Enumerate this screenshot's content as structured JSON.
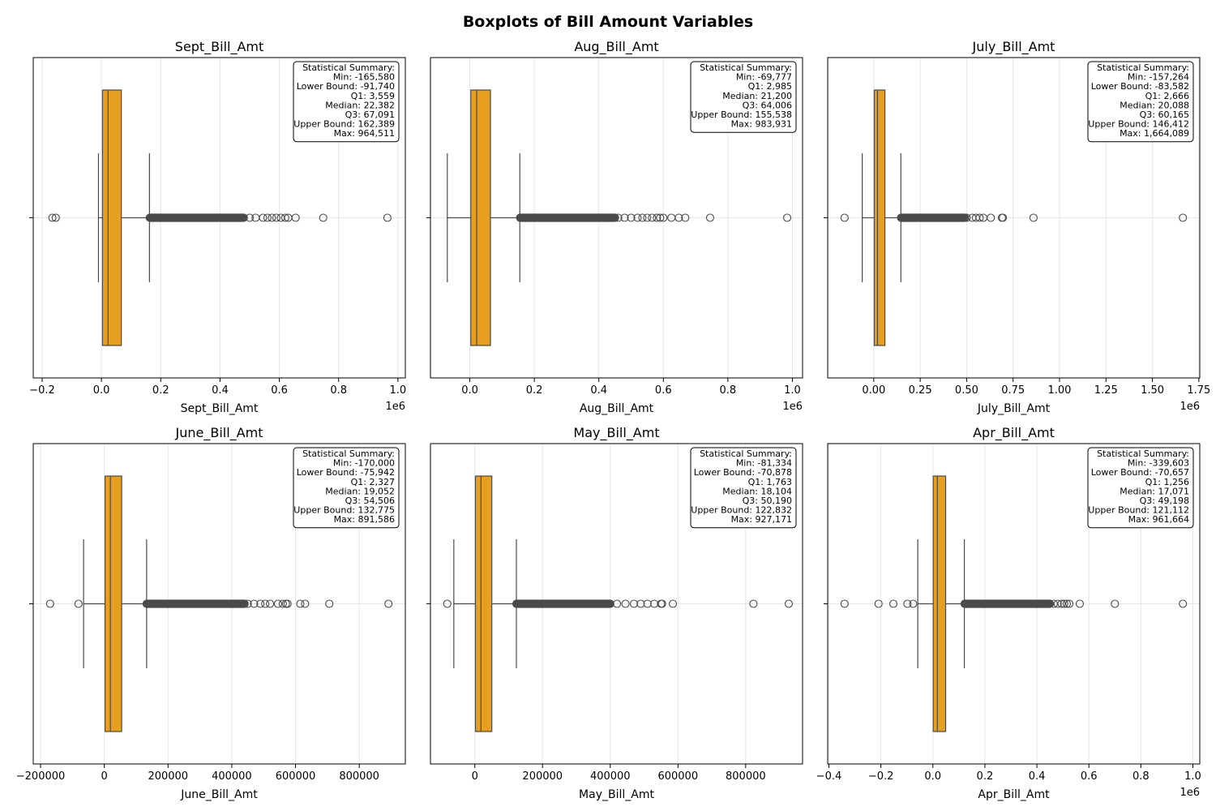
{
  "title": "Boxplots of Bill Amount Variables",
  "colors": {
    "box_fill": "#E69F1F",
    "line": "#4a4a4a",
    "grid": "#e6e6e6",
    "frame": "#000000"
  },
  "chart_data": [
    {
      "type": "boxplot",
      "orientation": "horizontal",
      "title": "Sept_Bill_Amt",
      "xlabel": "Sept_Bill_Amt",
      "xlim": [
        -0.23,
        1.025
      ],
      "scale_factor": 1000000,
      "offset_text": "1e6",
      "xticks": [
        -0.2,
        0,
        0.2,
        0.4,
        0.6,
        0.8,
        1.0
      ],
      "xtick_labels": [
        "−0.2",
        "0.0",
        "0.2",
        "0.4",
        "0.6",
        "0.8",
        "1.0"
      ],
      "box": {
        "q1": 0.003559,
        "median": 0.022382,
        "q3": 0.067091,
        "whisker_low": -0.01,
        "whisker_high": 0.162
      },
      "outliers_low": [
        -0.16558,
        -0.154
      ],
      "outlier_band": [
        0.163,
        0.48
      ],
      "outliers_high": [
        0.5,
        0.52,
        0.545,
        0.56,
        0.575,
        0.59,
        0.605,
        0.62,
        0.63,
        0.655,
        0.748,
        0.964511
      ],
      "summary_title": "Statistical Summary:",
      "summary_lines": [
        "Min: -165,580",
        "Lower Bound: -91,740",
        "Q1: 3,559",
        "Median: 22,382",
        "Q3: 67,091",
        "Upper Bound: 162,389",
        "Max: 964,511"
      ]
    },
    {
      "type": "boxplot",
      "orientation": "horizontal",
      "title": "Aug_Bill_Amt",
      "xlabel": "Aug_Bill_Amt",
      "xlim": [
        -0.122,
        1.0316
      ],
      "scale_factor": 1000000,
      "offset_text": "1e6",
      "xticks": [
        0,
        0.2,
        0.4,
        0.6,
        0.8,
        1.0
      ],
      "xtick_labels": [
        "0.0",
        "0.2",
        "0.4",
        "0.6",
        "0.8",
        "1.0"
      ],
      "box": {
        "q1": 0.002985,
        "median": 0.0212,
        "q3": 0.064006,
        "whisker_low": -0.069777,
        "whisker_high": 0.155
      },
      "outliers_low": [],
      "outlier_band": [
        0.156,
        0.45
      ],
      "outliers_high": [
        0.46,
        0.48,
        0.5,
        0.52,
        0.535,
        0.55,
        0.565,
        0.58,
        0.59,
        0.6,
        0.625,
        0.648,
        0.668,
        0.745,
        0.983931
      ],
      "summary_title": "Statistical Summary:",
      "summary_lines": [
        "Min: -69,777",
        "Q1: 2,985",
        "Median: 21,200",
        "Q3: 64,006",
        "Upper Bound: 155,538",
        "Max: 983,931"
      ]
    },
    {
      "type": "boxplot",
      "orientation": "horizontal",
      "title": "July_Bill_Amt",
      "xlabel": "July_Bill_Amt",
      "xlim": [
        -0.248,
        1.755
      ],
      "scale_factor": 1000000,
      "offset_text": "1e6",
      "xticks": [
        0,
        0.25,
        0.5,
        0.75,
        1.0,
        1.25,
        1.5,
        1.75
      ],
      "xtick_labels": [
        "0.00",
        "0.25",
        "0.50",
        "0.75",
        "1.00",
        "1.25",
        "1.50",
        "1.75"
      ],
      "box": {
        "q1": 0.002666,
        "median": 0.020088,
        "q3": 0.060165,
        "whisker_low": -0.062,
        "whisker_high": 0.146
      },
      "outliers_low": [
        -0.157264
      ],
      "outlier_band": [
        0.147,
        0.49
      ],
      "outliers_high": [
        0.5,
        0.53,
        0.55,
        0.57,
        0.59,
        0.63,
        0.69,
        0.695,
        0.86,
        1.664089
      ],
      "summary_title": "Statistical Summary:",
      "summary_lines": [
        "Min: -157,264",
        "Lower Bound: -83,582",
        "Q1: 2,666",
        "Median: 20,088",
        "Q3: 60,165",
        "Upper Bound: 146,412",
        "Max: 1,664,089"
      ]
    },
    {
      "type": "boxplot",
      "orientation": "horizontal",
      "title": "June_Bill_Amt",
      "xlabel": "June_Bill_Amt",
      "xlim": [
        -223000,
        944600
      ],
      "scale_factor": 1,
      "offset_text": "",
      "xticks": [
        -200000,
        0,
        200000,
        400000,
        600000,
        800000
      ],
      "xtick_labels": [
        "−200000",
        "0",
        "200000",
        "400000",
        "600000",
        "800000"
      ],
      "box": {
        "q1": 2327,
        "median": 19052,
        "q3": 54506,
        "whisker_low": -65000,
        "whisker_high": 132775
      },
      "outliers_low": [
        -170000,
        -81000
      ],
      "outlier_band": [
        133000,
        440000
      ],
      "outliers_high": [
        450000,
        470000,
        490000,
        505000,
        520000,
        545000,
        560000,
        570000,
        575000,
        615000,
        630000,
        706000,
        891586
      ],
      "summary_title": "Statistical Summary:",
      "summary_lines": [
        "Min: -170,000",
        "Lower Bound: -75,942",
        "Q1: 2,327",
        "Median: 19,052",
        "Q3: 54,506",
        "Upper Bound: 132,775",
        "Max: 891,586"
      ]
    },
    {
      "type": "boxplot",
      "orientation": "horizontal",
      "title": "May_Bill_Amt",
      "xlabel": "May_Bill_Amt",
      "xlim": [
        -131000,
        968000
      ],
      "scale_factor": 1,
      "offset_text": "",
      "xticks": [
        0,
        200000,
        400000,
        600000,
        800000
      ],
      "xtick_labels": [
        "0",
        "200000",
        "400000",
        "600000",
        "800000"
      ],
      "box": {
        "q1": 1763,
        "median": 18104,
        "q3": 50190,
        "whisker_low": -62000,
        "whisker_high": 122832
      },
      "outliers_low": [
        -81334
      ],
      "outlier_band": [
        123000,
        400000
      ],
      "outliers_high": [
        420000,
        445000,
        470000,
        490000,
        510000,
        530000,
        550000,
        553000,
        585000,
        823000,
        927171
      ],
      "summary_title": "Statistical Summary:",
      "summary_lines": [
        "Min: -81,334",
        "Lower Bound: -70,878",
        "Q1: 1,763",
        "Median: 18,104",
        "Q3: 50,190",
        "Upper Bound: 122,832",
        "Max: 927,171"
      ]
    },
    {
      "type": "boxplot",
      "orientation": "horizontal",
      "title": "Apr_Bill_Amt",
      "xlabel": "Apr_Bill_Amt",
      "xlim": [
        -0.4046,
        1.0266
      ],
      "scale_factor": 1000000,
      "offset_text": "1e6",
      "xticks": [
        -0.4,
        -0.2,
        0,
        0.2,
        0.4,
        0.6,
        0.8,
        1.0
      ],
      "xtick_labels": [
        "−0.4",
        "−0.2",
        "0.0",
        "0.2",
        "0.4",
        "0.6",
        "0.8",
        "1.0"
      ],
      "box": {
        "q1": 0.001256,
        "median": 0.017071,
        "q3": 0.049198,
        "whisker_low": -0.058,
        "whisker_high": 0.121
      },
      "outliers_low": [
        -0.339603,
        -0.209,
        -0.152,
        -0.098,
        -0.076
      ],
      "outlier_band": [
        0.122,
        0.45
      ],
      "outliers_high": [
        0.465,
        0.48,
        0.495,
        0.505,
        0.515,
        0.525,
        0.565,
        0.7,
        0.961664
      ],
      "summary_title": "Statistical Summary:",
      "summary_lines": [
        "Min: -339,603",
        "Lower Bound: -70,657",
        "Q1: 1,256",
        "Median: 17,071",
        "Q3: 49,198",
        "Upper Bound: 121,112",
        "Max: 961,664"
      ]
    }
  ]
}
